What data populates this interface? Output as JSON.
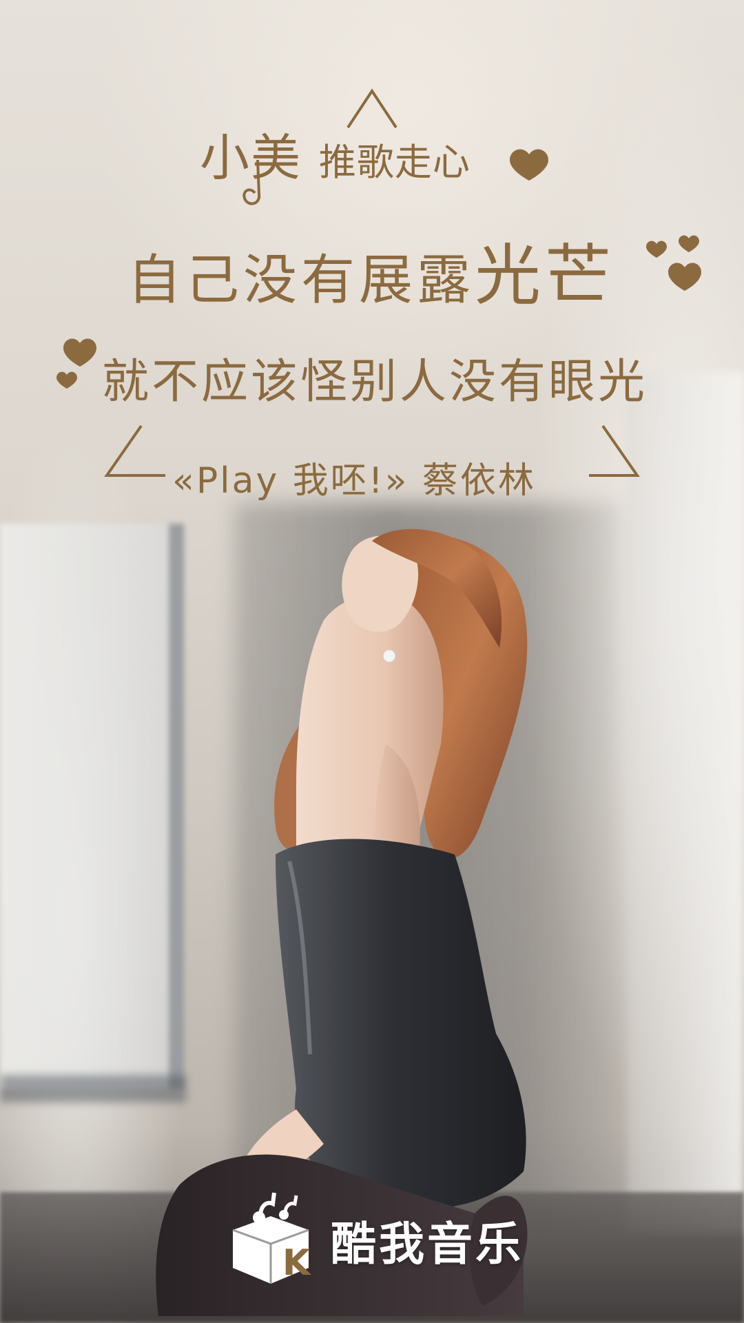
{
  "poster": {
    "line1_part_a": "小美",
    "line1_part_b": "推歌走心",
    "line2_part_a": "自己没有展露",
    "line2_part_b": "光芒",
    "line3": "就不应该怪别人没有眼光",
    "song_title": "«Play 我呸!»",
    "artist": "蔡依林"
  },
  "brand": {
    "name": "酷我音乐",
    "logo_icon": "kuwo-music-logo-icon"
  },
  "colors": {
    "text": "#8c6a3f",
    "brand_text": "#ffffff"
  }
}
